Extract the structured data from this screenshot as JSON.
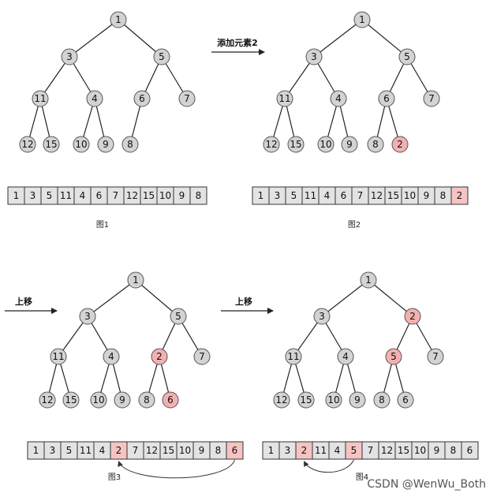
{
  "colors": {
    "node_fill": "#d3d3d3",
    "highlight_fill": "#f4b0b0",
    "cell_fill": "#e3e3e3",
    "cell_highlight_fill": "#f6c3c3"
  },
  "panels": [
    {
      "caption": "图1",
      "tree_nodes": [
        "1",
        "3",
        "5",
        "11",
        "4",
        "6",
        "7",
        "12",
        "15",
        "10",
        "9",
        "8"
      ],
      "highlighted_nodes": [],
      "array": [
        "1",
        "3",
        "5",
        "11",
        "4",
        "6",
        "7",
        "12",
        "15",
        "10",
        "9",
        "8"
      ],
      "highlighted_cells": [],
      "swap_arc": null
    },
    {
      "caption": "图2",
      "tree_nodes": [
        "1",
        "3",
        "5",
        "11",
        "4",
        "6",
        "7",
        "12",
        "15",
        "10",
        "9",
        "8",
        "2"
      ],
      "highlighted_nodes": [
        12
      ],
      "array": [
        "1",
        "3",
        "5",
        "11",
        "4",
        "6",
        "7",
        "12",
        "15",
        "10",
        "9",
        "8",
        "2"
      ],
      "highlighted_cells": [
        12
      ],
      "swap_arc": null
    },
    {
      "caption": "图3",
      "tree_nodes": [
        "1",
        "3",
        "5",
        "11",
        "4",
        "2",
        "7",
        "12",
        "15",
        "10",
        "9",
        "8",
        "6"
      ],
      "highlighted_nodes": [
        5,
        12
      ],
      "array": [
        "1",
        "3",
        "5",
        "11",
        "4",
        "2",
        "7",
        "12",
        "15",
        "10",
        "9",
        "8",
        "6"
      ],
      "highlighted_cells": [
        5,
        12
      ],
      "swap_arc": [
        5,
        12
      ]
    },
    {
      "caption": "图4",
      "tree_nodes": [
        "1",
        "3",
        "2",
        "11",
        "4",
        "5",
        "7",
        "12",
        "15",
        "10",
        "9",
        "8",
        "6"
      ],
      "highlighted_nodes": [
        2,
        5
      ],
      "array": [
        "1",
        "3",
        "2",
        "11",
        "4",
        "5",
        "7",
        "12",
        "15",
        "10",
        "9",
        "8",
        "6"
      ],
      "highlighted_cells": [
        2,
        5
      ],
      "swap_arc": [
        2,
        5
      ]
    }
  ],
  "arrows": [
    {
      "label": "添加元素2"
    },
    {
      "label": "上移"
    },
    {
      "label": "上移"
    }
  ],
  "watermark": "CSDN @WenWu_Both"
}
